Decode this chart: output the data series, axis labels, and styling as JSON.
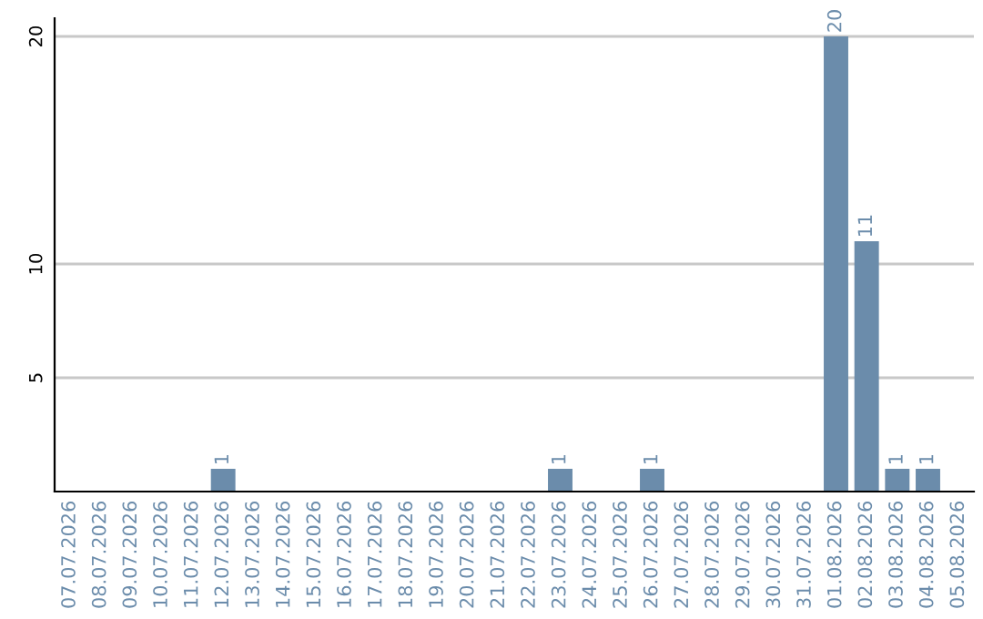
{
  "chart_data": {
    "type": "bar",
    "categories": [
      "07.07.2026",
      "08.07.2026",
      "09.07.2026",
      "10.07.2026",
      "11.07.2026",
      "12.07.2026",
      "13.07.2026",
      "14.07.2026",
      "15.07.2026",
      "16.07.2026",
      "17.07.2026",
      "18.07.2026",
      "19.07.2026",
      "20.07.2026",
      "21.07.2026",
      "22.07.2026",
      "23.07.2026",
      "24.07.2026",
      "25.07.2026",
      "26.07.2026",
      "27.07.2026",
      "28.07.2026",
      "29.07.2026",
      "30.07.2026",
      "31.07.2026",
      "01.08.2026",
      "02.08.2026",
      "03.08.2026",
      "04.08.2026",
      "05.08.2026"
    ],
    "values": [
      0,
      0,
      0,
      0,
      0,
      1,
      0,
      0,
      0,
      0,
      0,
      0,
      0,
      0,
      0,
      0,
      1,
      0,
      0,
      1,
      0,
      0,
      0,
      0,
      0,
      20,
      11,
      1,
      1,
      0
    ],
    "value_labels": [
      null,
      null,
      null,
      null,
      null,
      "1",
      null,
      null,
      null,
      null,
      null,
      null,
      null,
      null,
      null,
      null,
      "1",
      null,
      null,
      "1",
      null,
      null,
      null,
      null,
      null,
      "20",
      "11",
      "1",
      "1",
      null
    ],
    "color": "#6b8cab",
    "ylim": [
      0,
      20.8
    ],
    "yticks": [
      5,
      10,
      20
    ],
    "grid": "y",
    "legend": false
  }
}
